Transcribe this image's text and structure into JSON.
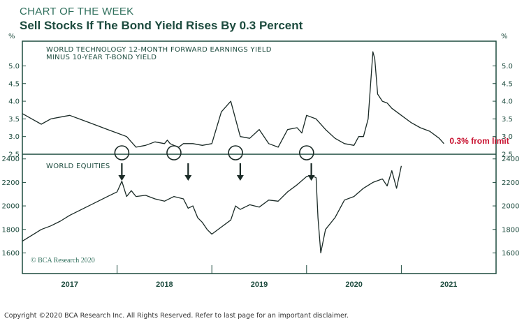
{
  "header": {
    "kicker": "CHART OF THE WEEK",
    "title": "Sell Stocks If The Bond Yield Rises By 0.3 Percent"
  },
  "footer": {
    "copyright": "Copyright ©2020 BCA Research Inc. All Rights Reserved. Refer to last page for an important disclaimer."
  },
  "colors": {
    "frame": "#1d4b3e",
    "series": "#1a2a26",
    "annotation_red": "#c8102e",
    "watermark": "#2f6f5c"
  },
  "chart_data": [
    {
      "type": "line",
      "panel": "top",
      "title": "WORLD TECHNOLOGY 12-MONTH FORWARD EARNINGS YIELD MINUS 10-YEAR T-BOND YIELD",
      "title_lines": [
        "WORLD TECHNOLOGY 12-MONTH FORWARD EARNINGS YIELD",
        "MINUS 10-YEAR T-BOND YIELD"
      ],
      "unit": "%",
      "ylim": [
        2.5,
        5.7
      ],
      "yticks": [
        2.5,
        3.0,
        3.5,
        4.0,
        4.5,
        5.0
      ],
      "ytick_labels_left": [
        "2.5",
        "3.0",
        "3.5",
        "4.0",
        "4.5",
        "5.0"
      ],
      "ytick_labels_right": [
        "2.5",
        "3.0",
        "3.5",
        "4.0",
        "4.5",
        "5.0"
      ],
      "grid": false,
      "series": [
        {
          "x": [
            2016.5,
            2016.6,
            2016.7,
            2016.8,
            2016.9,
            2017.0,
            2017.1,
            2017.2,
            2017.3,
            2017.4,
            2017.5,
            2017.6,
            2017.7,
            2017.8,
            2017.9,
            2018.0,
            2018.03,
            2018.06,
            2018.1,
            2018.15,
            2018.2,
            2018.3,
            2018.4,
            2018.5,
            2018.6,
            2018.7,
            2018.75,
            2018.8,
            2018.9,
            2019.0,
            2019.1,
            2019.2,
            2019.3,
            2019.4,
            2019.45,
            2019.5,
            2019.6,
            2019.7,
            2019.8,
            2019.9,
            2020.0,
            2020.05,
            2020.1,
            2020.15,
            2020.2,
            2020.22,
            2020.25,
            2020.3,
            2020.35,
            2020.4,
            2020.5,
            2020.6,
            2020.7,
            2020.8,
            2020.9,
            2020.95
          ],
          "values": [
            3.65,
            3.5,
            3.35,
            3.5,
            3.55,
            3.6,
            3.5,
            3.4,
            3.3,
            3.2,
            3.1,
            3.0,
            2.7,
            2.75,
            2.85,
            2.8,
            2.9,
            2.8,
            2.75,
            2.7,
            2.8,
            2.8,
            2.75,
            2.8,
            3.7,
            4.0,
            3.5,
            3.0,
            2.95,
            3.2,
            2.8,
            2.7,
            3.2,
            3.25,
            3.1,
            3.6,
            3.5,
            3.2,
            2.95,
            2.8,
            2.75,
            3.0,
            3.0,
            3.5,
            5.4,
            5.2,
            4.2,
            4.0,
            3.95,
            3.8,
            3.6,
            3.4,
            3.25,
            3.15,
            2.95,
            2.8
          ]
        }
      ],
      "markers": [
        2017.55,
        2018.1,
        2018.75,
        2019.5
      ],
      "annotations": [
        {
          "text": "0.3% from limit",
          "x": 2020.95,
          "y": 2.88,
          "color": "#c8102e"
        }
      ]
    },
    {
      "type": "line",
      "panel": "bottom",
      "title": "WORLD EQUITIES",
      "ylim": [
        1460,
        2440
      ],
      "yticks": [
        1600,
        1800,
        2000,
        2200,
        2400
      ],
      "ytick_labels_left": [
        "1600",
        "1800",
        "2000",
        "2200",
        "2400"
      ],
      "ytick_labels_right": [
        "1600",
        "1800",
        "2000",
        "2200",
        "2400"
      ],
      "grid": false,
      "series": [
        {
          "x": [
            2016.5,
            2016.6,
            2016.7,
            2016.8,
            2016.9,
            2017.0,
            2017.1,
            2017.2,
            2017.3,
            2017.4,
            2017.5,
            2017.55,
            2017.6,
            2017.65,
            2017.7,
            2017.8,
            2017.9,
            2018.0,
            2018.1,
            2018.2,
            2018.25,
            2018.3,
            2018.35,
            2018.4,
            2018.45,
            2018.5,
            2018.6,
            2018.7,
            2018.75,
            2018.8,
            2018.9,
            2019.0,
            2019.1,
            2019.2,
            2019.3,
            2019.4,
            2019.5,
            2019.55,
            2019.6,
            2019.62,
            2019.65,
            2019.7,
            2019.8,
            2019.9,
            2020.0,
            2020.1,
            2020.2,
            2020.3,
            2020.35,
            2020.4,
            2020.45,
            2020.5
          ],
          "values": [
            1700,
            1750,
            1800,
            1830,
            1870,
            1920,
            1960,
            2000,
            2040,
            2080,
            2120,
            2210,
            2080,
            2130,
            2080,
            2090,
            2060,
            2040,
            2080,
            2060,
            1980,
            2000,
            1900,
            1860,
            1800,
            1760,
            1820,
            1880,
            2000,
            1970,
            2010,
            1990,
            2050,
            2040,
            2120,
            2180,
            2250,
            2260,
            2240,
            1900,
            1600,
            1800,
            1900,
            2050,
            2080,
            2150,
            2200,
            2230,
            2170,
            2300,
            2150,
            2340
          ]
        }
      ],
      "markers": [
        2017.55,
        2018.25,
        2018.8,
        2019.55
      ]
    }
  ],
  "x_axis": {
    "xlim": [
      2016.5,
      2021.5
    ],
    "ticks": [
      2016.5,
      2017.5,
      2018.5,
      2019.5,
      2020.5,
      2021.5
    ],
    "labels": [
      {
        "text": "2017",
        "x": 2017.0
      },
      {
        "text": "2018",
        "x": 2018.0
      },
      {
        "text": "2019",
        "x": 2019.0
      },
      {
        "text": "2020",
        "x": 2020.0
      },
      {
        "text": "2021",
        "x": 2021.0
      }
    ]
  },
  "watermark": "© BCA Research 2020"
}
